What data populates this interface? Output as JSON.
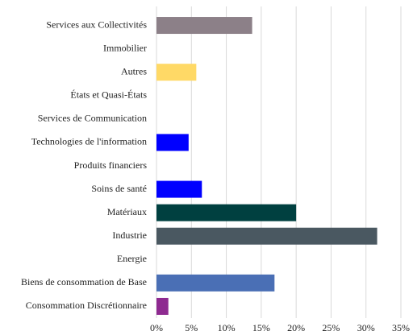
{
  "chart_data": {
    "type": "bar",
    "orientation": "horizontal",
    "categories": [
      "Services aux Collectivités",
      "Immobilier",
      "Autres",
      "États et Quasi-États",
      "Services de Communication",
      "Technologies de l'information",
      "Produits financiers",
      "Soins de santé",
      "Matériaux",
      "Industrie",
      "Energie",
      "Biens de consommation de Base",
      "Consommation Discrétionnaire"
    ],
    "values": [
      13.7,
      0,
      5.7,
      0,
      0,
      4.6,
      0,
      6.5,
      20.0,
      31.6,
      0,
      16.9,
      1.7
    ],
    "colors": [
      "#8c8088",
      "#8c8088",
      "#ffd966",
      "#0000ff",
      "#0000ff",
      "#0000ff",
      "#0000ff",
      "#0000ff",
      "#004040",
      "#4a5861",
      "#4a5861",
      "#4a6fb5",
      "#8e2a90"
    ],
    "xlim": [
      0,
      35
    ],
    "xticks": [
      {
        "value": 0,
        "label": "0%"
      },
      {
        "value": 5,
        "label": "5%"
      },
      {
        "value": 10,
        "label": "10%"
      },
      {
        "value": 15,
        "label": "15%"
      },
      {
        "value": 20,
        "label": "20%"
      },
      {
        "value": 25,
        "label": "25%"
      },
      {
        "value": 30,
        "label": "30%"
      },
      {
        "value": 35,
        "label": "35%"
      }
    ],
    "grid": true
  }
}
